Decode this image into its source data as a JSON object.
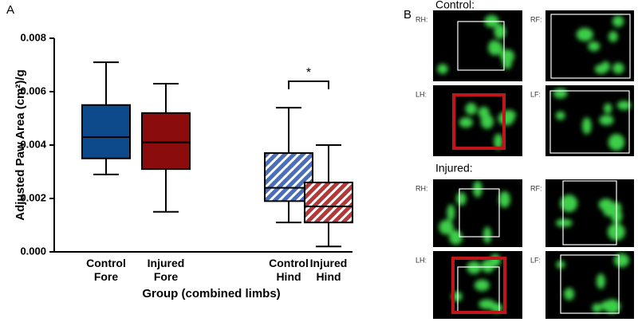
{
  "chart_data": {
    "type": "box",
    "panel_label": "A",
    "ylabel": "Adjusted Paw Area (cm²)/g",
    "xlabel": "Group (combined limbs)",
    "categories": [
      "Control Fore",
      "Injured Fore",
      "Control Hind",
      "Injured Hind"
    ],
    "boxes": [
      {
        "min": 0.0029,
        "q1": 0.0035,
        "median": 0.0043,
        "q3": 0.0055,
        "max": 0.0071,
        "color": "#0d4a8c",
        "hatch": false
      },
      {
        "min": 0.0015,
        "q1": 0.0031,
        "median": 0.0041,
        "q3": 0.0052,
        "max": 0.0063,
        "color": "#8a0c0c",
        "hatch": false
      },
      {
        "min": 0.0011,
        "q1": 0.0019,
        "median": 0.0024,
        "q3": 0.0037,
        "max": 0.0054,
        "color": "#4a6fb8",
        "hatch": true
      },
      {
        "min": 0.0002,
        "q1": 0.0011,
        "median": 0.0017,
        "q3": 0.0026,
        "max": 0.004,
        "color": "#b03a3a",
        "hatch": true
      }
    ],
    "significance": {
      "text": "*",
      "categories": [
        2,
        3
      ]
    },
    "ylim": [
      0,
      0.008
    ],
    "yticks": [
      {
        "value": 0,
        "label": "0.000"
      },
      {
        "value": 0.002,
        "label": "0.002"
      },
      {
        "value": 0.004,
        "label": "0.004"
      },
      {
        "value": 0.006,
        "label": "0.006"
      },
      {
        "value": 0.008,
        "label": "0.008"
      }
    ]
  },
  "panel_b": {
    "label": "B",
    "groups": [
      {
        "title": "Control:",
        "cells": [
          {
            "label": "RH:"
          },
          {
            "label": "RF:"
          },
          {
            "label": "LH:"
          },
          {
            "label": "LF:"
          }
        ]
      },
      {
        "title": "Injured:",
        "cells": [
          {
            "label": "RH:"
          },
          {
            "label": "RF:"
          },
          {
            "label": "LH:"
          },
          {
            "label": "LF:"
          }
        ]
      }
    ]
  }
}
